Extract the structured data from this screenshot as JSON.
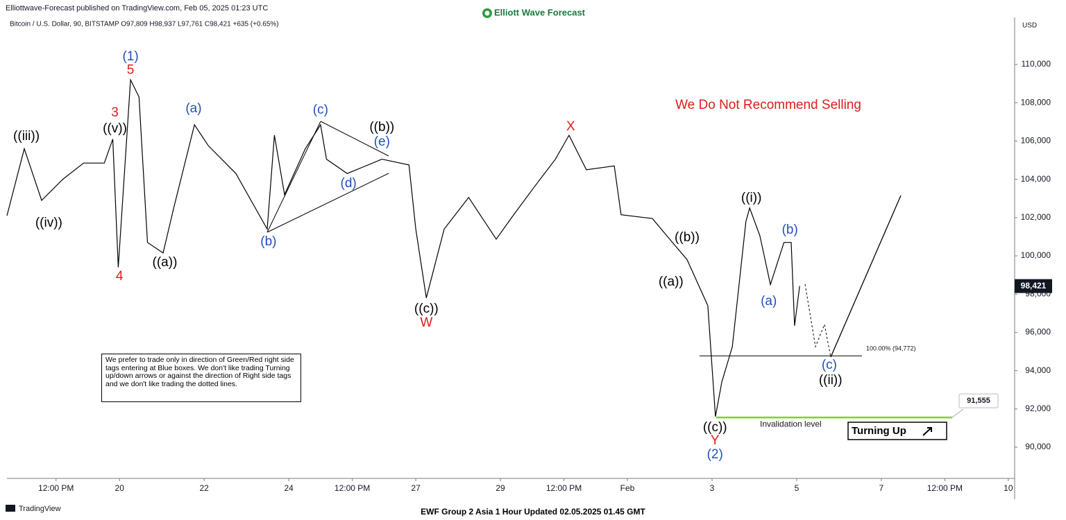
{
  "chart_data": {
    "type": "line",
    "header": "Elliottwave-Forecast published on TradingView.com, Feb 05, 2025 01:23 UTC",
    "brand": "Elliott Wave Forecast",
    "title": "Bitcoin / U.S. Dollar, 90, BITSTAMP O97,809 H98,937 L97,761 C98,421 +635 (+0.65%)",
    "currency": "USD",
    "headline": "We Do Not Recommend Selling",
    "note": "We prefer to trade only in direction of Green/Red right side tags entering at Blue boxes. We don't like trading Turning up/down arrows or against the direction of Right side tags and we don't like trading the dotted lines.",
    "signal": "Turning Up",
    "footer_left": "TradingView",
    "footer": "EWF Group 2 Asia 1 Hour Updated 02.05.2025 01.45 GMT",
    "x": [
      17.34,
      17.75,
      18.16,
      18.66,
      19.15,
      19.64,
      19.84,
      19.97,
      20.26,
      20.46,
      20.66,
      21.03,
      21.28,
      21.77,
      22.1,
      22.75,
      23.49,
      23.66,
      23.9,
      24.39,
      24.75,
      24.89,
      25.38,
      26.2,
      26.84,
      27.0,
      27.25,
      27.67,
      28.25,
      28.9,
      29.31,
      29.8,
      30.3,
      30.62,
      31.03,
      31.69,
      31.85,
      32.59,
      33.0,
      33.41,
      33.9,
      34.08,
      34.23,
      34.48,
      34.8,
      34.89,
      35.13,
      35.38,
      35.7,
      35.87,
      35.95,
      36.07
    ],
    "series": [
      {
        "name": "BTCUSD",
        "color": "#000000",
        "values": [
          102100,
          105600,
          102900,
          104000,
          104850,
          104850,
          106100,
          99400,
          109200,
          108300,
          100700,
          100150,
          102500,
          106850,
          105750,
          104300,
          101400,
          106300,
          103200,
          105600,
          106850,
          105050,
          104300,
          105050,
          104750,
          101400,
          97800,
          101400,
          103050,
          100870,
          102140,
          103600,
          105050,
          106300,
          104500,
          104700,
          102150,
          101950,
          100870,
          99800,
          97400,
          91600,
          93400,
          95250,
          101800,
          102500,
          101050,
          98500,
          100700,
          100700,
          96350,
          98421
        ]
      }
    ],
    "last_price": {
      "value": 98421,
      "label": "98,421"
    },
    "fib_level": {
      "value": 94772,
      "label": "100.00% (94,772)"
    },
    "invalidation": {
      "value": 91555,
      "label": "91,555",
      "text": "Invalidation level"
    },
    "xlim": [
      17.34,
      41.15
    ],
    "ylim": [
      88370,
      111740
    ],
    "xticks": [
      {
        "value": 18.5,
        "label": "12:00 PM"
      },
      20,
      22,
      24,
      {
        "value": 25.5,
        "label": "12:00 PM"
      },
      27,
      29,
      {
        "value": 30.5,
        "label": "12:00 PM"
      },
      {
        "value": 32,
        "label": "Feb"
      },
      {
        "value": 34,
        "label": "3"
      },
      {
        "value": 36,
        "label": "5"
      },
      {
        "value": 38,
        "label": "7"
      },
      {
        "value": 39.5,
        "label": "12:00 PM"
      },
      {
        "value": 41,
        "label": "10"
      }
    ],
    "yticks": [
      {
        "value": 90000,
        "label": "90,000"
      },
      {
        "value": 92000,
        "label": "92,000"
      },
      {
        "value": 94000,
        "label": "94,000"
      },
      {
        "value": 96000,
        "label": "96,000"
      },
      {
        "value": 98000,
        "label": "98,000"
      },
      {
        "value": 100000,
        "label": "100,000"
      },
      {
        "value": 102000,
        "label": "102,000"
      },
      {
        "value": 104000,
        "label": "104,000"
      },
      {
        "value": 106000,
        "label": "106,000"
      },
      {
        "value": 108000,
        "label": "108,000"
      },
      {
        "value": 110000,
        "label": "110,000"
      }
    ],
    "annotations": [
      {
        "text": "(1)",
        "color": "#1f4fbf",
        "x": 20.26,
        "y": 110400
      },
      {
        "text": "5",
        "color": "#e01b1b",
        "x": 20.26,
        "y": 109700
      },
      {
        "text": "3",
        "color": "#e01b1b",
        "x": 19.89,
        "y": 107460
      },
      {
        "text": "((v))",
        "color": "#000000",
        "x": 19.89,
        "y": 106630
      },
      {
        "text": "((iii))",
        "color": "#000000",
        "x": 17.8,
        "y": 106230
      },
      {
        "text": "((iv))",
        "color": "#000000",
        "x": 18.33,
        "y": 101700
      },
      {
        "text": "4",
        "color": "#e01b1b",
        "x": 20.0,
        "y": 98910
      },
      {
        "text": "((a))",
        "color": "#000000",
        "x": 21.07,
        "y": 99640
      },
      {
        "text": "(a)",
        "color": "#1f4fbf",
        "x": 21.75,
        "y": 107680
      },
      {
        "text": "(b)",
        "color": "#1f4fbf",
        "x": 23.52,
        "y": 100720
      },
      {
        "text": "(c)",
        "color": "#1f4fbf",
        "x": 24.75,
        "y": 107610
      },
      {
        "text": "((b))",
        "color": "#000000",
        "x": 26.2,
        "y": 106700
      },
      {
        "text": "(e)",
        "color": "#1f4fbf",
        "x": 26.2,
        "y": 105940
      },
      {
        "text": "(d)",
        "color": "#1f4fbf",
        "x": 25.41,
        "y": 103770
      },
      {
        "text": "((c))",
        "color": "#000000",
        "x": 27.25,
        "y": 97210
      },
      {
        "text": "W",
        "color": "#e01b1b",
        "x": 27.25,
        "y": 96490
      },
      {
        "text": "X",
        "color": "#e01b1b",
        "x": 30.66,
        "y": 106740
      },
      {
        "text": "((b))",
        "color": "#000000",
        "x": 33.41,
        "y": 100940
      },
      {
        "text": "((a))",
        "color": "#000000",
        "x": 33.03,
        "y": 98620
      },
      {
        "text": "((c))",
        "color": "#000000",
        "x": 34.07,
        "y": 91010
      },
      {
        "text": "Y",
        "color": "#e01b1b",
        "x": 34.07,
        "y": 90330
      },
      {
        "text": "(2)",
        "color": "#1f4fbf",
        "x": 34.07,
        "y": 89600
      },
      {
        "text": "((i))",
        "color": "#000000",
        "x": 34.93,
        "y": 103010
      },
      {
        "text": "(b)",
        "color": "#1f4fbf",
        "x": 35.84,
        "y": 101340
      },
      {
        "text": "(a)",
        "color": "#1f4fbf",
        "x": 35.34,
        "y": 97610
      },
      {
        "text": "(c)",
        "color": "#1f4fbf",
        "x": 36.77,
        "y": 94270
      },
      {
        "text": "((ii))",
        "color": "#000000",
        "x": 36.8,
        "y": 93480
      }
    ]
  }
}
